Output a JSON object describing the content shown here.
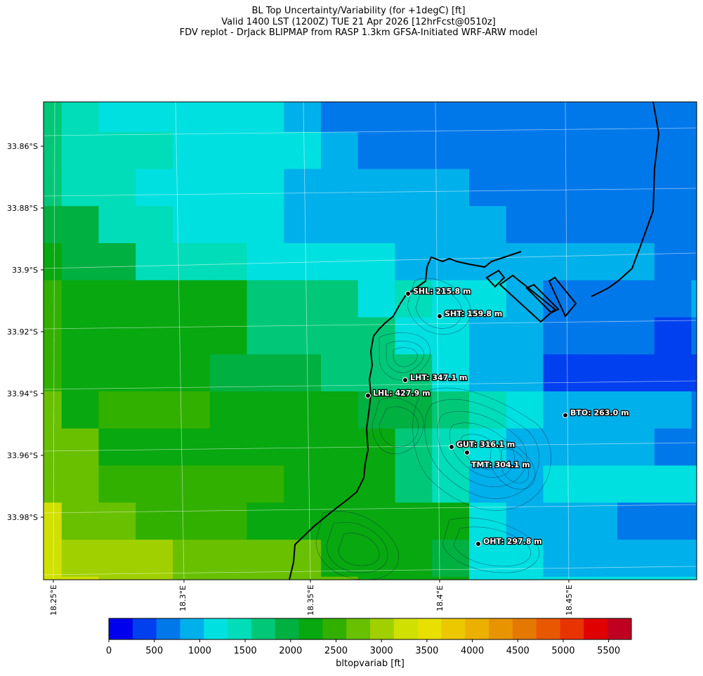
{
  "title": {
    "line1": "BL Top Uncertainty/Variability (for +1degC) [ft]",
    "line2": "Valid 1400 LST (1200Z) TUE 21 Apr 2026 [12hrFcst@0510z]",
    "line3": "FDV replot - DrJack BLIPMAP from RASP 1.3km GFSA-Initiated WRF-ARW model"
  },
  "lat_ticks": [
    "33.86°S",
    "33.88°S",
    "33.9°S",
    "33.92°S",
    "33.94°S",
    "33.96°S",
    "33.98°S"
  ],
  "lon_ticks": [
    "18.25°E",
    "18.3°E",
    "18.35°E",
    "18.4°E",
    "18.45°E"
  ],
  "colorbar": {
    "label": "bltopvariab [ft]",
    "ticks": [
      "0",
      "500",
      "1000",
      "1500",
      "2000",
      "2500",
      "3000",
      "3500",
      "4000",
      "4500",
      "5000",
      "5500"
    ],
    "colors": [
      "#0000ee",
      "#0040ee",
      "#0078ea",
      "#00b0ea",
      "#00e0e0",
      "#00ddb8",
      "#00c878",
      "#00b040",
      "#08a810",
      "#32b000",
      "#68c000",
      "#a0d000",
      "#d0e000",
      "#e8e000",
      "#ecc800",
      "#ecb000",
      "#e89400",
      "#e47800",
      "#e85800",
      "#e83400",
      "#e00000",
      "#c00020"
    ]
  },
  "stations": [
    {
      "name": "SHL",
      "label": "SHL: 215.8 m"
    },
    {
      "name": "SHT",
      "label": "SHT: 159.8 m"
    },
    {
      "name": "LHT",
      "label": "LHT: 347.1 m"
    },
    {
      "name": "LHL",
      "label": "LHL: 427.9 m"
    },
    {
      "name": "BTO",
      "label": "BTO: 263.0 m"
    },
    {
      "name": "GUT",
      "label": "GUT: 316.1 m"
    },
    {
      "name": "TMT",
      "label": "TMT: 304.1 m"
    },
    {
      "name": "OHT",
      "label": "OHT: 297.8 m"
    }
  ],
  "grid_colors": {
    "palette": {
      "a": "#0000ee",
      "b": "#0040ee",
      "c": "#0078ea",
      "d": "#00b0ea",
      "e": "#00e0e0",
      "f": "#00ddb8",
      "g": "#00c878",
      "h": "#00b040",
      "i": "#08a810",
      "j": "#32b000",
      "k": "#68c000",
      "l": "#a0d000",
      "m": "#d0e000"
    },
    "rows": [
      "gfeeeeedcccccccccccccccce",
      "gfffeeeedcccccccccccccccde",
      "gffeeeedddddcccccccccccdc",
      "hhffeeeddddddcccccccccccec",
      "ihhfffeeeedddddddccdddccdc",
      "jiiiiigggefeedccccdddddcccb",
      "jiiiiiggggeeddcccbccddddddc",
      "jiiiihhhgggeddbbbbbcddddddc",
      "kijjjiiiihhgfeddddcdbbbbbbb",
      "kkiiiiiiiigfeddddccbbbbbbbb",
      "kkjjjjjiiigfddeeeeeeeeebbbb",
      "mkkjjjiiiiiiedddcccbddeeeed",
      "mlllkkkkiiiheeddddddddfhee",
      "mmllkkkkkiiieeeeeeeddeeeeec",
      "kkklllllljiieeeeeeedddddddd"
    ]
  }
}
